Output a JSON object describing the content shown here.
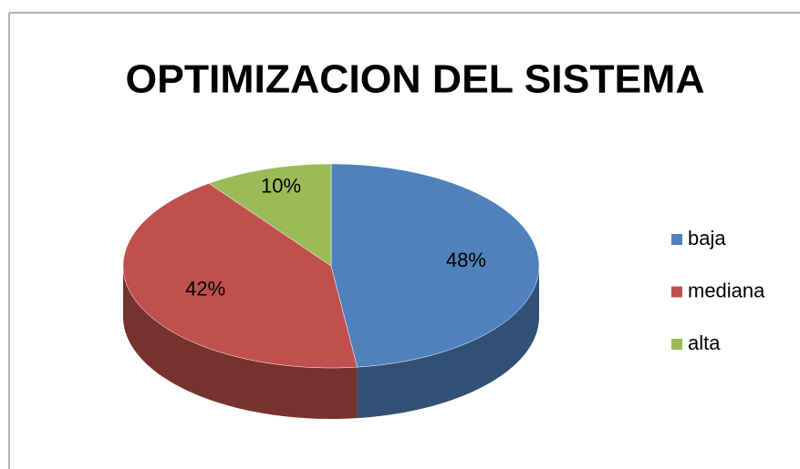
{
  "chart_data": {
    "type": "pie",
    "title": "OPTIMIZACION DEL SISTEMA",
    "categories": [
      "baja",
      "mediana",
      "alta"
    ],
    "values": [
      48,
      42,
      10
    ],
    "value_labels": [
      "48%",
      "42%",
      "10%"
    ],
    "colors": [
      "#4f81bd",
      "#c0504d",
      "#9bbb59"
    ],
    "legend": "right"
  }
}
